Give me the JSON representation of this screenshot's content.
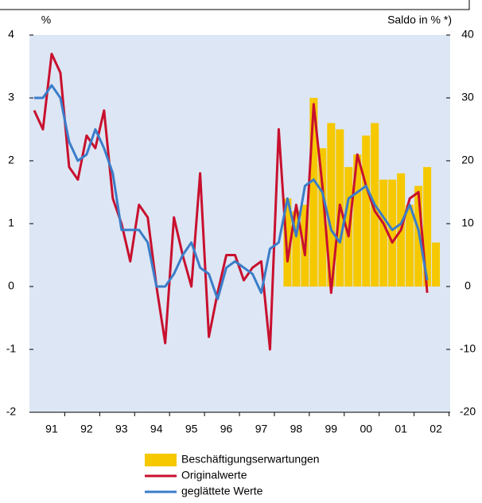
{
  "chart_data": {
    "type": "bar_line",
    "y_label": "%",
    "y2_label": "Saldo in % *)",
    "categories": [
      null,
      null,
      "91",
      null,
      null,
      null,
      "92",
      null,
      null,
      null,
      "93",
      null,
      null,
      null,
      "94",
      null,
      null,
      null,
      "95",
      null,
      null,
      null,
      "96",
      null,
      null,
      null,
      "97",
      null,
      null,
      null,
      "98",
      null,
      null,
      null,
      "99",
      null,
      null,
      null,
      "00",
      null,
      null,
      null,
      "01",
      null,
      null,
      null,
      "02"
    ],
    "ylim": [
      -2,
      4
    ],
    "yticks": [
      -2,
      -1,
      0,
      1,
      2,
      3,
      4
    ],
    "y2lim": [
      -20,
      40
    ],
    "y2ticks": [
      -20,
      -10,
      0,
      10,
      20,
      30,
      40
    ],
    "series": [
      {
        "name": "Beschäftigungserwartungen",
        "type": "bar",
        "axis": "y2",
        "color": "#f5c800",
        "values": [
          null,
          null,
          null,
          null,
          null,
          null,
          null,
          null,
          null,
          null,
          null,
          null,
          null,
          null,
          null,
          null,
          null,
          null,
          null,
          null,
          null,
          null,
          null,
          null,
          null,
          null,
          null,
          null,
          null,
          14,
          12,
          13,
          30,
          22,
          26,
          25,
          19,
          21,
          24,
          26,
          17,
          17,
          18,
          13,
          16,
          19,
          7
        ]
      },
      {
        "name": "Originalwerte",
        "type": "line",
        "color": "#c8102e",
        "values": [
          2.8,
          2.5,
          3.7,
          3.4,
          1.9,
          1.7,
          2.4,
          2.2,
          2.8,
          1.4,
          1.0,
          0.4,
          1.3,
          1.1,
          0.0,
          -0.9,
          1.1,
          0.5,
          0.0,
          1.8,
          -0.8,
          -0.1,
          0.5,
          0.5,
          0.1,
          0.3,
          0.4,
          -1.0,
          2.5,
          0.4,
          1.3,
          0.5,
          2.9,
          1.6,
          -0.1,
          1.3,
          0.8,
          2.1,
          1.6,
          1.2,
          1.0,
          0.7,
          0.9,
          1.4,
          1.5,
          -0.1,
          null
        ]
      },
      {
        "name": "geglättete Werte",
        "type": "line",
        "color": "#3a7dc9",
        "values": [
          3.0,
          3.0,
          3.2,
          3.0,
          2.3,
          2.0,
          2.1,
          2.5,
          2.2,
          1.8,
          0.9,
          0.9,
          0.9,
          0.7,
          0.0,
          0.0,
          0.2,
          0.5,
          0.7,
          0.3,
          0.2,
          -0.2,
          0.3,
          0.4,
          0.3,
          0.2,
          -0.1,
          0.6,
          0.7,
          1.4,
          0.8,
          1.6,
          1.7,
          1.5,
          0.9,
          0.7,
          1.4,
          1.5,
          1.6,
          1.3,
          1.1,
          0.9,
          1.0,
          1.3,
          0.9,
          0.1,
          null
        ]
      }
    ]
  }
}
